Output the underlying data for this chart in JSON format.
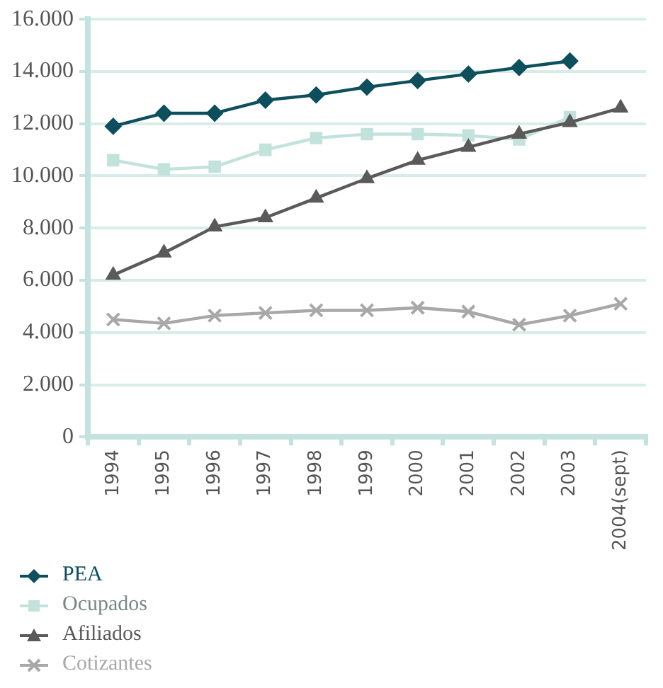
{
  "chart_data": {
    "type": "line",
    "categories": [
      "1994",
      "1995",
      "1996",
      "1997",
      "1998",
      "1999",
      "2000",
      "2001",
      "2002",
      "2003",
      "2004(sept)"
    ],
    "series": [
      {
        "name": "PEA",
        "color": "#0d4f5c",
        "marker": "diamond",
        "values": [
          11900,
          12400,
          12400,
          12900,
          13100,
          13400,
          13650,
          13900,
          14150,
          14400,
          null
        ]
      },
      {
        "name": "Ocupados",
        "color": "#c2e2dc",
        "marker": "square",
        "values": [
          10600,
          10250,
          10350,
          11000,
          11450,
          11600,
          11600,
          11550,
          11400,
          12250,
          null
        ]
      },
      {
        "name": "Afiliados",
        "color": "#5a5a5a",
        "marker": "triangle",
        "values": [
          6200,
          7050,
          8050,
          8400,
          9150,
          9900,
          10600,
          11100,
          11600,
          12050,
          12600
        ]
      },
      {
        "name": "Cotizantes",
        "color": "#a8a8a8",
        "marker": "cross",
        "values": [
          4500,
          4350,
          4650,
          4750,
          4850,
          4850,
          4950,
          4800,
          4300,
          4650,
          5100
        ]
      }
    ],
    "ylim": [
      0,
      16000
    ],
    "yticks": [
      {
        "value": 0,
        "label": "0"
      },
      {
        "value": 2000,
        "label": "2.000"
      },
      {
        "value": 4000,
        "label": "4.000"
      },
      {
        "value": 6000,
        "label": "6.000"
      },
      {
        "value": 8000,
        "label": "8.000"
      },
      {
        "value": 10000,
        "label": "10.000"
      },
      {
        "value": 12000,
        "label": "12.000"
      },
      {
        "value": 14000,
        "label": "14.000"
      },
      {
        "value": 16000,
        "label": "16.000"
      }
    ],
    "grid": "y",
    "legend": "bottom left",
    "line_style": "solid"
  }
}
